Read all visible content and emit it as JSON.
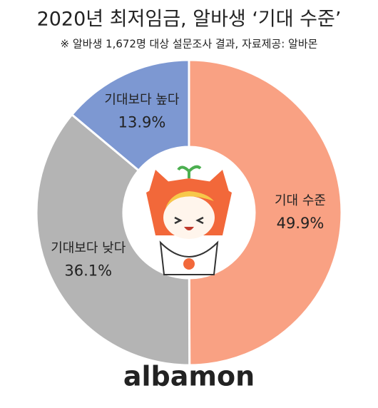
{
  "chart_data": {
    "type": "pie",
    "title": "2020년 최저임금, 알바생 ‘기대 수준’",
    "subtitle": "※ 알바생 1,672명 대상 설문조사 결과,  자료제공: 알바몬",
    "categories": [
      "기대 수준",
      "기대보다 낮다",
      "기대보다 높다"
    ],
    "values": [
      49.9,
      36.1,
      13.9
    ],
    "value_labels": [
      "49.9%",
      "36.1%",
      "13.9%"
    ],
    "colors": [
      "#f9a183",
      "#b4b4b4",
      "#7d98d2"
    ],
    "donut": true
  },
  "brand": "albamon"
}
